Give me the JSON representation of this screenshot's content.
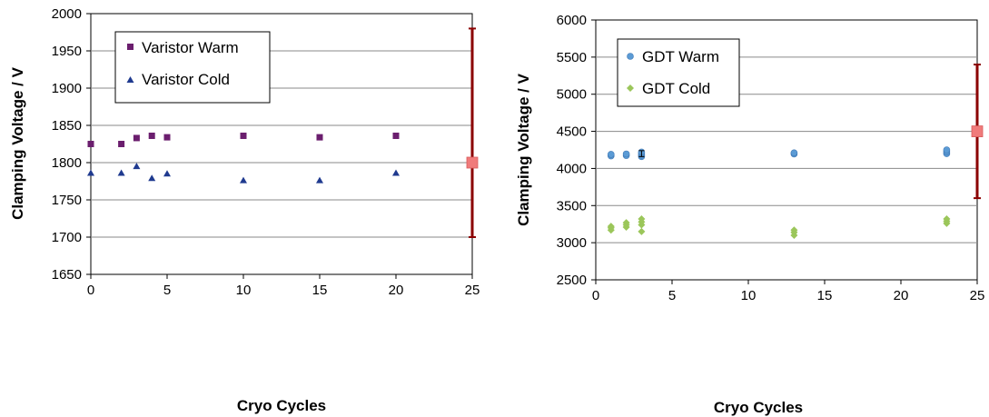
{
  "chart_data": [
    {
      "type": "scatter",
      "title": "",
      "xlabel": "Cryo Cycles",
      "ylabel": "Clamping Voltage / V",
      "xlim": [
        0,
        25
      ],
      "ylim": [
        1650,
        2000
      ],
      "xticks": [
        "0",
        "5",
        "10",
        "15",
        "20",
        "25"
      ],
      "yticks": [
        "1650",
        "1700",
        "1750",
        "1800",
        "1850",
        "1900",
        "1950",
        "2000"
      ],
      "grid": "horizontal",
      "legend_position": "top-left",
      "series": [
        {
          "name": "Varistor Warm",
          "marker": "square",
          "color": "#6b1e6e",
          "points": [
            [
              0,
              1825
            ],
            [
              2,
              1825
            ],
            [
              3,
              1833
            ],
            [
              4,
              1836
            ],
            [
              5,
              1834
            ],
            [
              10,
              1836
            ],
            [
              15,
              1834
            ],
            [
              20,
              1836
            ]
          ]
        },
        {
          "name": "Varistor Cold",
          "marker": "triangle",
          "color": "#1f3a8f",
          "points": [
            [
              0,
              1786
            ],
            [
              2,
              1786
            ],
            [
              3,
              1795
            ],
            [
              4,
              1779
            ],
            [
              5,
              1785
            ],
            [
              10,
              1776
            ],
            [
              15,
              1776
            ],
            [
              20,
              1786
            ]
          ]
        }
      ],
      "reference": {
        "x": 25,
        "y": 1800,
        "low": 1700,
        "high": 1980,
        "marker_color": "#f07b7b",
        "bar_color": "#8b0000"
      }
    },
    {
      "type": "scatter",
      "title": "",
      "xlabel": "Cryo Cycles",
      "ylabel": "Clamping Voltage / V",
      "xlim": [
        0,
        25
      ],
      "ylim": [
        2500,
        6000
      ],
      "xticks": [
        "0",
        "5",
        "10",
        "15",
        "20",
        "25"
      ],
      "yticks": [
        "2500",
        "3000",
        "3500",
        "4000",
        "4500",
        "5000",
        "5500",
        "6000"
      ],
      "grid": "horizontal",
      "legend_position": "top-left",
      "series": [
        {
          "name": "GDT Warm",
          "marker": "circle",
          "color": "#5b9bd5",
          "points": [
            [
              1,
              4170
            ],
            [
              1,
              4190
            ],
            [
              2,
              4175
            ],
            [
              2,
              4195
            ],
            [
              3,
              4160
            ],
            [
              3,
              4180
            ],
            [
              3,
              4200
            ],
            [
              3,
              4220
            ],
            [
              13,
              4195
            ],
            [
              13,
              4210
            ],
            [
              23,
              4200
            ],
            [
              23,
              4225
            ],
            [
              23,
              4250
            ]
          ]
        },
        {
          "name": "GDT Cold",
          "marker": "diamond",
          "color": "#9bc65a",
          "points": [
            [
              1,
              3170
            ],
            [
              1,
              3200
            ],
            [
              1,
              3220
            ],
            [
              2,
              3210
            ],
            [
              2,
              3240
            ],
            [
              2,
              3270
            ],
            [
              3,
              3150
            ],
            [
              3,
              3240
            ],
            [
              3,
              3280
            ],
            [
              3,
              3320
            ],
            [
              13,
              3100
            ],
            [
              13,
              3140
            ],
            [
              13,
              3170
            ],
            [
              23,
              3260
            ],
            [
              23,
              3290
            ],
            [
              23,
              3320
            ]
          ]
        }
      ],
      "warm_error_bar": {
        "x": 3,
        "low": 4160,
        "high": 4240
      },
      "reference": {
        "x": 25,
        "y": 4500,
        "low": 3600,
        "high": 5400,
        "marker_color": "#f07b7b",
        "bar_color": "#8b0000"
      }
    }
  ]
}
